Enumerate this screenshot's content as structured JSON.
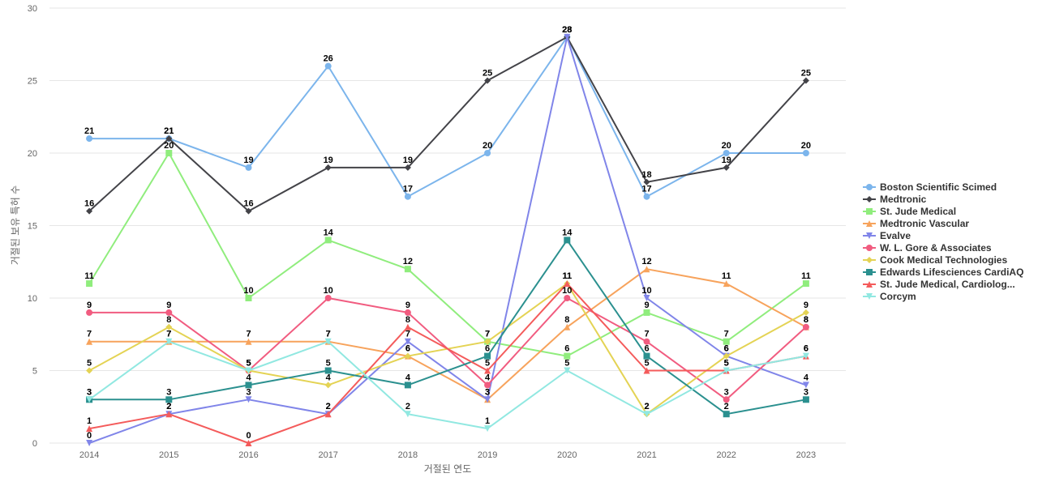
{
  "chart_data": {
    "type": "line",
    "xlabel": "거절된 연도",
    "ylabel": "거절된 보유 특허 수",
    "ylim": [
      0,
      30
    ],
    "yticks": [
      0,
      5,
      10,
      15,
      20,
      25,
      30
    ],
    "grid": true,
    "legend_position": "right",
    "x": [
      "2014",
      "2015",
      "2016",
      "2017",
      "2018",
      "2019",
      "2020",
      "2021",
      "2022",
      "2023"
    ],
    "series": [
      {
        "name": "Boston Scientific Scimed",
        "color": "#7cb5ec",
        "marker": "circle",
        "values": [
          21,
          21,
          19,
          26,
          17,
          20,
          28,
          17,
          20,
          20
        ]
      },
      {
        "name": "Medtronic",
        "color": "#434348",
        "marker": "diamond",
        "values": [
          16,
          21,
          16,
          19,
          19,
          25,
          28,
          18,
          19,
          25
        ]
      },
      {
        "name": "St. Jude Medical",
        "color": "#90ed7d",
        "marker": "square",
        "values": [
          11,
          20,
          10,
          14,
          12,
          7,
          6,
          9,
          7,
          11
        ]
      },
      {
        "name": "Medtronic Vascular",
        "color": "#f7a35c",
        "marker": "triangle",
        "values": [
          7,
          7,
          7,
          7,
          6,
          3,
          8,
          12,
          11,
          8
        ]
      },
      {
        "name": "Evalve",
        "color": "#8085e9",
        "marker": "triangle-down",
        "values": [
          0,
          2,
          3,
          2,
          7,
          3,
          28,
          10,
          6,
          4
        ]
      },
      {
        "name": "W. L. Gore & Associates",
        "color": "#f15c80",
        "marker": "circle",
        "values": [
          9,
          9,
          5,
          10,
          9,
          4,
          10,
          7,
          3,
          8
        ]
      },
      {
        "name": "Cook Medical Technologies",
        "color": "#e4d354",
        "marker": "diamond",
        "values": [
          5,
          8,
          5,
          4,
          6,
          7,
          11,
          2,
          6,
          9
        ]
      },
      {
        "name": "Edwards Lifesciences CardiAQ",
        "color": "#2b908f",
        "marker": "square",
        "values": [
          3,
          3,
          4,
          5,
          4,
          6,
          14,
          6,
          2,
          3
        ]
      },
      {
        "name": "St. Jude Medical, Cardiolog...",
        "color": "#f45b5b",
        "marker": "triangle",
        "values": [
          1,
          2,
          0,
          2,
          8,
          5,
          11,
          5,
          5,
          6
        ]
      },
      {
        "name": "Corcym",
        "color": "#91e8e1",
        "marker": "triangle-down",
        "values": [
          3,
          7,
          5,
          7,
          2,
          1,
          5,
          2,
          5,
          6
        ]
      }
    ]
  }
}
